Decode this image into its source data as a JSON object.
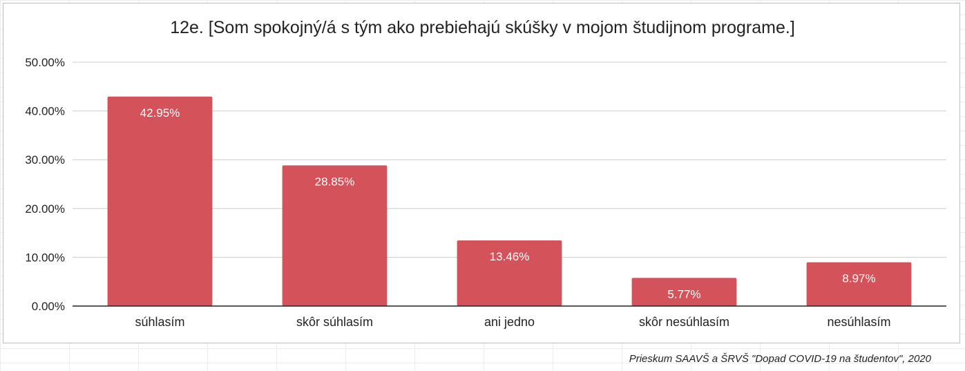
{
  "chart_data": {
    "type": "bar",
    "title": "12e. [Som spokojný/á s tým ako prebiehajú skúšky v mojom študijnom programe.]",
    "categories": [
      "súhlasím",
      "skôr súhlasím",
      "ani jedno",
      "skôr nesúhlasím",
      "nesúhlasím"
    ],
    "values": [
      42.95,
      28.85,
      13.46,
      5.77,
      8.97
    ],
    "data_labels": [
      "42.95%",
      "28.85%",
      "13.46%",
      "5.77%",
      "8.97%"
    ],
    "y_ticks": [
      0,
      10,
      20,
      30,
      40,
      50
    ],
    "y_tick_labels": [
      "0.00%",
      "10.00%",
      "20.00%",
      "30.00%",
      "40.00%",
      "50.00%"
    ],
    "ylim": [
      0,
      50
    ],
    "xlabel": "",
    "ylabel": "",
    "grid": true,
    "colors": {
      "bar": "#d4525a",
      "grid": "#cccccc",
      "axis": "#222222"
    }
  },
  "source_note": "Prieskum SAAVŠ a ŠRVŠ \"Dopad COVID-19 na študentov\", 2020"
}
